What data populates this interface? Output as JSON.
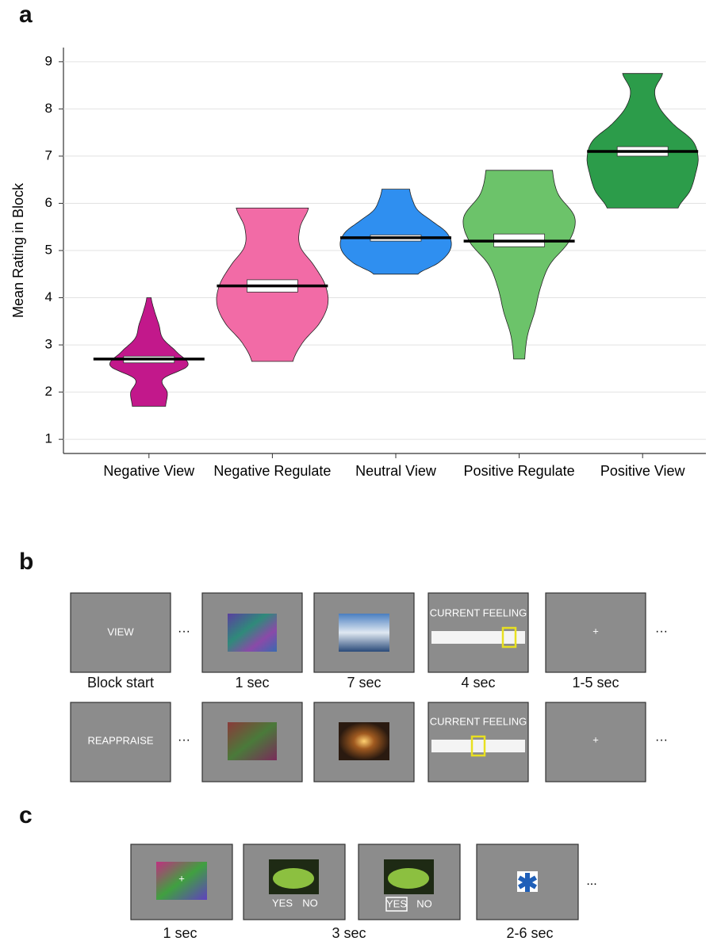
{
  "chart_data": {
    "type": "violin",
    "panel_label": "a",
    "y_label": "Mean Rating in Block",
    "categories": [
      "Negative View",
      "Negative Regulate",
      "Neutral View",
      "Positive Regulate",
      "Positive View"
    ],
    "violins": [
      {
        "color": "#c2188b",
        "min": 1.7,
        "max": 4.0,
        "median": 2.7,
        "q1": 2.62,
        "q3": 2.76,
        "widths": [
          0.3,
          0.33,
          0.25,
          0.7,
          0.5,
          0.25,
          0.18,
          0.1,
          0.04
        ]
      },
      {
        "color": "#f26ba6",
        "min": 2.65,
        "max": 5.9,
        "median": 4.25,
        "q1": 4.12,
        "q3": 4.38,
        "widths": [
          0.37,
          0.55,
          0.85,
          1.0,
          0.95,
          0.75,
          0.5,
          0.5,
          0.65
        ]
      },
      {
        "color": "#2f8ff0",
        "min": 4.5,
        "max": 6.3,
        "median": 5.27,
        "q1": 5.2,
        "q3": 5.33,
        "widths": [
          0.4,
          0.75,
          0.95,
          1.0,
          0.9,
          0.65,
          0.4,
          0.3,
          0.25
        ]
      },
      {
        "color": "#6cc36a",
        "min": 2.7,
        "max": 6.7,
        "median": 5.2,
        "q1": 5.08,
        "q3": 5.35,
        "widths": [
          0.1,
          0.15,
          0.28,
          0.38,
          0.55,
          0.9,
          1.0,
          0.7,
          0.6
        ]
      },
      {
        "color": "#2c9c4a",
        "min": 5.9,
        "max": 8.75,
        "median": 7.1,
        "q1": 7.0,
        "q3": 7.2,
        "widths": [
          0.64,
          0.85,
          0.95,
          1.0,
          0.9,
          0.55,
          0.3,
          0.22,
          0.36
        ]
      }
    ],
    "ylim": [
      0.7,
      9.3
    ],
    "yticks": [
      1,
      2,
      3,
      4,
      5,
      6,
      7,
      8,
      9
    ],
    "grid": true
  },
  "panel_b": {
    "label": "b",
    "timings": [
      "Block start",
      "1 sec",
      "7 sec",
      "4 sec",
      "1-5 sec"
    ],
    "rows": [
      {
        "cue": "VIEW",
        "rating_prompt": "CURRENT FEELING",
        "fixation": "+"
      },
      {
        "cue": "REAPPRAISE",
        "rating_prompt": "CURRENT FEELING",
        "fixation": "+"
      }
    ],
    "ellipsis": "···"
  },
  "panel_c": {
    "label": "c",
    "timings": [
      "1 sec",
      "3 sec",
      "2-6 sec"
    ],
    "fixation": "+",
    "yes": "YES",
    "no": "NO",
    "ellipsis": "..."
  }
}
